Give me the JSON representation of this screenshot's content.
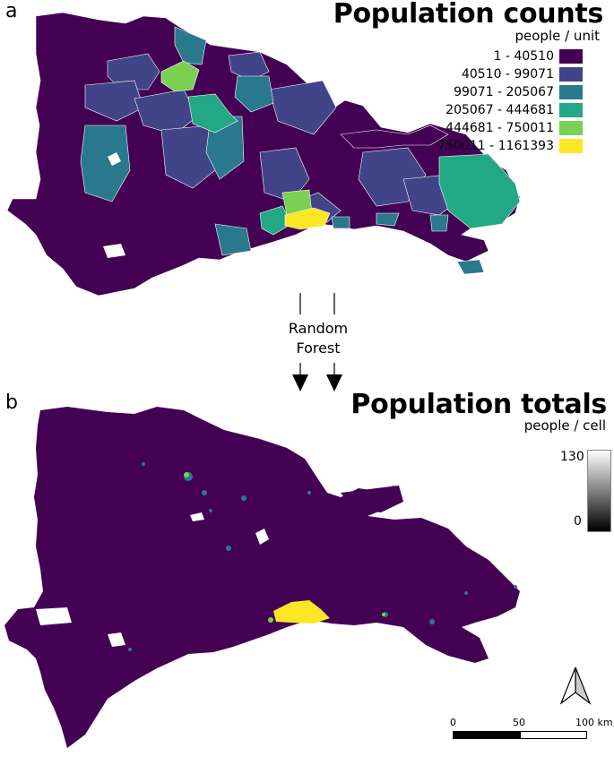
{
  "panel_a": {
    "letter": "a",
    "title": "Population counts",
    "unit": "people / unit",
    "legend": [
      {
        "label": "1 - 40510",
        "color": "#440154"
      },
      {
        "label": "40510 - 99071",
        "color": "#414487"
      },
      {
        "label": "99071 - 205067",
        "color": "#2a788e"
      },
      {
        "label": "205067 - 444681",
        "color": "#22a884"
      },
      {
        "label": "444681 - 750011",
        "color": "#7ad151"
      },
      {
        "label": "750011 - 1161393",
        "color": "#fde725"
      }
    ]
  },
  "process": {
    "line1": "Random",
    "line2": "Forest"
  },
  "panel_b": {
    "letter": "b",
    "title": "Population totals",
    "unit": "people / cell",
    "scale_max": "130",
    "scale_min": "0"
  },
  "scalebar": {
    "label_0": "0",
    "label_50": "50",
    "label_100": "100 km"
  },
  "colors": {
    "background_unit": "#440154",
    "urban": "#fde725",
    "medium": "#2a788e"
  }
}
